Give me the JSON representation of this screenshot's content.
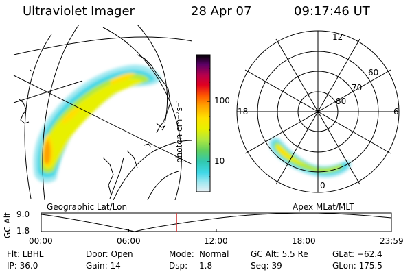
{
  "header": {
    "instrument": "Ultraviolet Imager",
    "date": "28 Apr 07",
    "time": "09:17:46 UT"
  },
  "left_panel": {
    "label": "Geographic Lat/Lon"
  },
  "right_panel": {
    "label": "Apex MLat/MLT",
    "mlt_labels": [
      "12",
      "18",
      "6",
      "0"
    ],
    "mlat_labels": [
      "60",
      "70",
      "80"
    ]
  },
  "colorbar": {
    "unit_label": "photon cm⁻²s⁻¹",
    "ticks": [
      "100",
      "10"
    ],
    "colors": [
      "#000000",
      "#5b0066",
      "#b8004c",
      "#e00020",
      "#ff5a00",
      "#ffa000",
      "#ffe000",
      "#e8f000",
      "#b0e840",
      "#60d060",
      "#30c8b0",
      "#40d8e8",
      "#a0e8f0",
      "#e8f0f4"
    ]
  },
  "alt_plot": {
    "y_label": "GC Alt",
    "y_ticks": [
      "9.0",
      "1.8"
    ],
    "x_ticks": [
      "00:00",
      "06:00",
      "12:00",
      "18:00",
      "23:59"
    ],
    "current_time_fraction": 0.387,
    "marker_color": "#d04040"
  },
  "info": {
    "filter": "Flt: LBHL",
    "ip": "IP: 36.0",
    "door": "Door: Open",
    "gain": "Gain: 14",
    "mode_label": "Mode:",
    "mode_value": "Normal",
    "dsp_label": "Dsp:",
    "dsp_value": "1.8",
    "gc_alt": "GC Alt: 5.5 Re",
    "seq": "Seq: 39",
    "glat": "GLat: −62.4",
    "glon": "GLon: 175.5"
  }
}
